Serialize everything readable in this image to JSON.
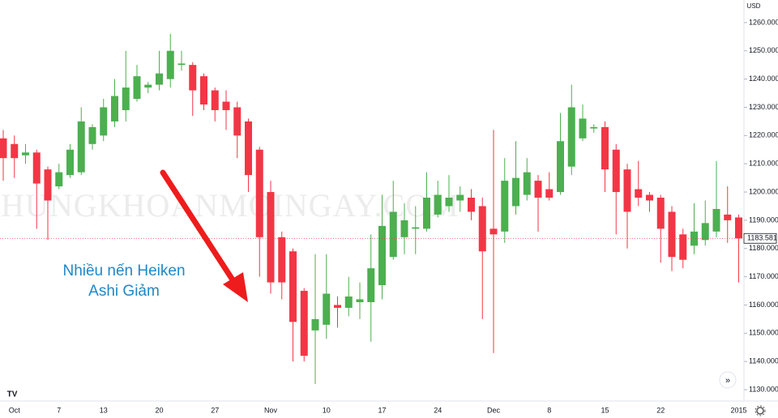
{
  "chart_data": {
    "type": "candlestick",
    "currency": "USD",
    "watermark": "CHUNGKHOANMOINGAY.COM",
    "annotation": [
      "Nhiều nến Heiken",
      "Ashi Giảm"
    ],
    "categories": [
      null,
      "Oct",
      null,
      null,
      null,
      "7",
      null,
      null,
      null,
      "13",
      null,
      null,
      null,
      null,
      "20",
      null,
      null,
      null,
      null,
      "27",
      null,
      null,
      null,
      null,
      "Nov",
      null,
      null,
      null,
      null,
      "10",
      null,
      null,
      null,
      null,
      "17",
      null,
      null,
      null,
      null,
      "24",
      null,
      null,
      null,
      null,
      "Dec",
      null,
      null,
      null,
      null,
      "8",
      null,
      null,
      null,
      null,
      "15",
      null,
      null,
      null,
      null,
      "22",
      null,
      null,
      null,
      null,
      null,
      null,
      "2015"
    ],
    "open": [
      1219,
      1217,
      1213,
      1214,
      1208,
      1202,
      1206,
      1207,
      1217,
      1220,
      1225,
      1229,
      1233,
      1237,
      1238,
      1240,
      1245,
      1245,
      1241,
      1236,
      1232,
      1230,
      1225,
      1215,
      1200,
      1184,
      1179,
      1165,
      1151,
      1153,
      1160,
      1159,
      1161,
      1161,
      1167,
      1177,
      1184,
      1187,
      1187,
      1192,
      1195,
      1197,
      1198,
      1195,
      1187,
      1186,
      1195,
      1199,
      1204,
      1201,
      1200,
      1209,
      1219,
      1222.5,
      1223,
      1215,
      1208,
      1201,
      1199,
      1198,
      1193,
      1185,
      1181,
      1183,
      1186,
      1192,
      1191
    ],
    "high": [
      1222,
      1220,
      1217,
      1215,
      1209,
      1210,
      1217,
      1230,
      1224,
      1233,
      1240,
      1250,
      1245,
      1239,
      1250,
      1256,
      1250,
      1246,
      1242,
      1237,
      1236,
      1232,
      1226,
      1216,
      1204,
      1186,
      1180,
      1166,
      1178,
      1178,
      1163,
      1170,
      1168,
      1185,
      1199,
      1204,
      1196,
      1195,
      1207,
      1204,
      1206,
      1202,
      1201,
      1198,
      1222,
      1212,
      1218,
      1212,
      1206,
      1207,
      1228,
      1238,
      1231,
      1224,
      1225,
      1217,
      1210,
      1211,
      1200,
      1199,
      1195,
      1187,
      1196,
      1197,
      1211,
      1202,
      1192
    ],
    "low": [
      1204,
      1205,
      1210,
      1187,
      1183,
      1201,
      1205,
      1206,
      1215,
      1218,
      1223,
      1225,
      1232,
      1235,
      1236,
      1237,
      1243,
      1227,
      1229,
      1225,
      1222,
      1212,
      1200,
      1170,
      1164,
      1162,
      1140,
      1140,
      1132,
      1148,
      1152,
      1156,
      1155,
      1147,
      1162,
      1176,
      1178,
      1178,
      1186,
      1191,
      1193,
      1193,
      1190,
      1155,
      1143,
      1182,
      1192,
      1197,
      1186,
      1197,
      1199,
      1206,
      1218,
      1221,
      1200,
      1185,
      1180,
      1195,
      1193,
      1175,
      1172,
      1173,
      1178,
      1181,
      1184,
      1182,
      1168
    ],
    "close": [
      1212,
      1212,
      1214,
      1203,
      1197,
      1207,
      1215,
      1225,
      1223,
      1230,
      1234,
      1237,
      1241,
      1238,
      1242,
      1250,
      1245.5,
      1236,
      1231,
      1229,
      1229,
      1220,
      1206,
      1184,
      1168,
      1168,
      1154,
      1142,
      1155,
      1164,
      1159,
      1163,
      1162,
      1173,
      1188,
      1193,
      1190,
      1187.5,
      1198,
      1199,
      1198,
      1199,
      1193,
      1179,
      1185,
      1204,
      1205,
      1207,
      1198,
      1198,
      1218,
      1230,
      1226,
      1223,
      1208,
      1200,
      1193,
      1198,
      1197,
      1187,
      1177,
      1176,
      1186,
      1189,
      1194,
      1190,
      1183.581
    ],
    "last_close_label": "1183.581",
    "up_color": "#4caf50",
    "down_color": "#f23645",
    "ylim": [
      1126,
      1268
    ],
    "yticks": [
      {
        "value": 1130,
        "label": "1130.000"
      },
      {
        "value": 1140,
        "label": "1140.000"
      },
      {
        "value": 1150,
        "label": "1150.000"
      },
      {
        "value": 1160,
        "label": "1160.000"
      },
      {
        "value": 1170,
        "label": "1170.000"
      },
      {
        "value": 1180,
        "label": "1180.000"
      },
      {
        "value": 1190,
        "label": "1190.000"
      },
      {
        "value": 1200,
        "label": "1200.000"
      },
      {
        "value": 1210,
        "label": "1210.000"
      },
      {
        "value": 1220,
        "label": "1220.000"
      },
      {
        "value": 1230,
        "label": "1230.000"
      },
      {
        "value": 1240,
        "label": "1240.000"
      },
      {
        "value": 1250,
        "label": "1250.000"
      },
      {
        "value": 1260,
        "label": "1260.000"
      }
    ]
  }
}
